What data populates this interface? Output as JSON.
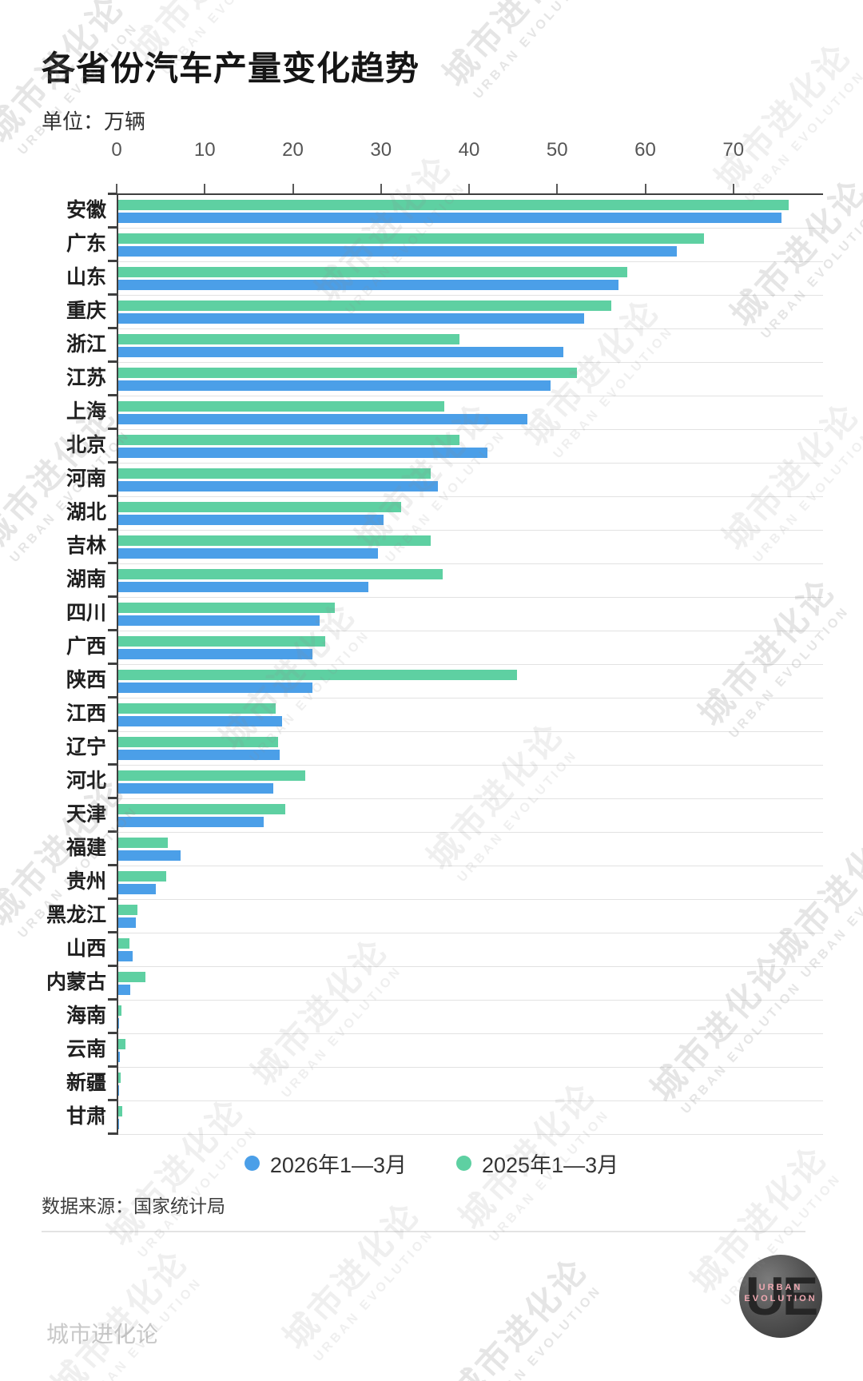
{
  "header": {
    "title": "各省份汽车产量变化趋势",
    "unit_label": "单位：万辆"
  },
  "chart_data": {
    "type": "bar",
    "orientation": "horizontal",
    "title": "各省份汽车产量变化趋势",
    "unit": "万辆",
    "x_ticks": [
      0,
      10,
      20,
      30,
      40,
      50,
      60,
      70
    ],
    "xlim": [
      0,
      80
    ],
    "grid": "row-separator-lines",
    "legend_position": "bottom",
    "categories": [
      "安徽",
      "广东",
      "山东",
      "重庆",
      "浙江",
      "江苏",
      "上海",
      "北京",
      "河南",
      "湖北",
      "吉林",
      "湖南",
      "四川",
      "广西",
      "陕西",
      "江西",
      "辽宁",
      "河北",
      "天津",
      "福建",
      "贵州",
      "黑龙江",
      "山西",
      "内蒙古",
      "海南",
      "云南",
      "新疆",
      "甘肃"
    ],
    "series": [
      {
        "name": "2026年1—3月",
        "color": "#4b9fe8",
        "values": [
          75.3,
          63.4,
          56.8,
          52.9,
          50.5,
          49.1,
          46.4,
          41.9,
          36.3,
          30.1,
          29.5,
          28.4,
          22.9,
          22.0,
          22.0,
          18.6,
          18.3,
          17.6,
          16.5,
          7.1,
          4.3,
          2.0,
          1.6,
          1.4,
          0.1,
          0.15,
          0.05,
          0.05
        ]
      },
      {
        "name": "2025年1—3月",
        "color": "#5ed0a2",
        "values": [
          76.1,
          66.5,
          57.8,
          56.0,
          38.7,
          52.1,
          37.0,
          38.7,
          35.5,
          32.1,
          35.5,
          36.8,
          24.6,
          23.5,
          45.3,
          17.9,
          18.1,
          21.2,
          19.0,
          5.6,
          5.4,
          2.2,
          1.3,
          3.1,
          0.4,
          0.8,
          0.3,
          0.45
        ]
      }
    ]
  },
  "legend": {
    "items": [
      {
        "label": "2026年1—3月",
        "color": "#4b9fe8"
      },
      {
        "label": "2025年1—3月",
        "color": "#5ed0a2"
      }
    ]
  },
  "footer": {
    "source": "数据来源：国家统计局",
    "brand": "城市进化论",
    "logo": {
      "monogram": "UE",
      "line1": "URBAN",
      "line2": "EVOLUTION"
    }
  },
  "watermark": {
    "line1": "城市进化论",
    "line2": "URBAN EVOLUTION"
  }
}
